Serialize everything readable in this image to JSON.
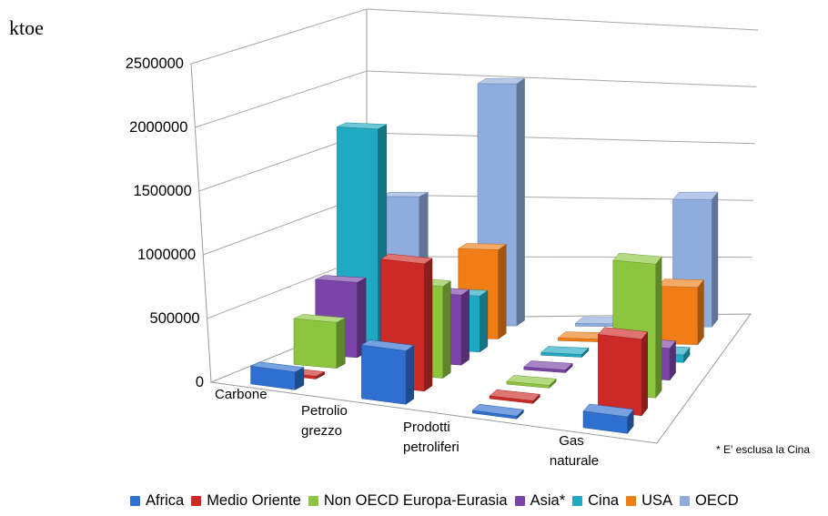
{
  "chart_data": {
    "type": "bar",
    "subtype": "3d-column",
    "ylabel": "ktoe",
    "ylim": [
      0,
      2500000
    ],
    "yticks": [
      "0",
      "500000",
      "1000000",
      "1500000",
      "2000000",
      "2500000"
    ],
    "grid": true,
    "legend_position": "bottom",
    "categories": [
      "Carbone",
      "Petrolio grezzo",
      "Prodotti petroliferi",
      "Gas naturale"
    ],
    "category_lines": [
      [
        "Carbone"
      ],
      [
        "Petrolio",
        "grezzo"
      ],
      [
        "Prodotti",
        "petroliferi"
      ],
      [
        "Gas",
        "naturale"
      ]
    ],
    "series": [
      {
        "name": "Africa",
        "color": "#2e6fcf",
        "values": [
          140000,
          420000,
          20000,
          130000
        ]
      },
      {
        "name": "Medio Oriente",
        "color": "#cc2a26",
        "values": [
          10000,
          1000000,
          20000,
          600000
        ]
      },
      {
        "name": "Non OECD Europa-Eurasia",
        "color": "#8cc63e",
        "values": [
          360000,
          720000,
          20000,
          1050000
        ]
      },
      {
        "name": "Asia*",
        "color": "#7b44a8",
        "values": [
          590000,
          550000,
          20000,
          250000
        ]
      },
      {
        "name": "Cina",
        "color": "#1fa9c2",
        "values": [
          1710000,
          440000,
          20000,
          60000
        ]
      },
      {
        "name": "USA",
        "color": "#f07d16",
        "values": [
          480000,
          700000,
          20000,
          450000
        ]
      },
      {
        "name": "OECD",
        "color": "#8eacde",
        "values": [
          1010000,
          1900000,
          20000,
          1000000
        ]
      }
    ],
    "annotations": [
      "* E' esclusa la Cina"
    ]
  }
}
